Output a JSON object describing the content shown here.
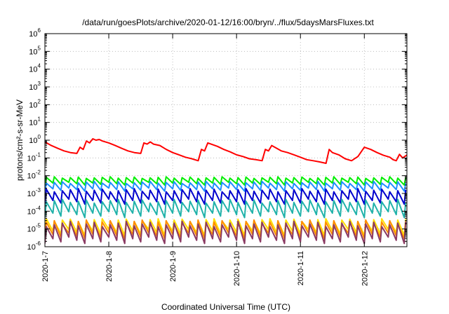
{
  "chart_data": {
    "type": "line",
    "title": "/data/run/goesPlots/archive/2020-01-12/16:00/bryn/../flux/5daysMarsFluxes.txt",
    "xlabel": "Coordinated Universal Time (UTC)",
    "ylabel": "protons/cm²-s-sr-MeV",
    "yscale": "log",
    "ylim": [
      1e-06,
      1000000.0
    ],
    "xlim": [
      "2020-01-07T00:00",
      "2020-01-12T16:00"
    ],
    "grid": true,
    "legend": "none",
    "x_tick_labels": [
      "2020-1-7",
      "2020-1-8",
      "2020-1-9",
      "2020-1-10",
      "2020-1-11",
      "2020-1-12"
    ],
    "x_tick_days": [
      0,
      1,
      2,
      3,
      4,
      5
    ],
    "y_tick_exponents": [
      -6,
      -5,
      -4,
      -3,
      -2,
      -1,
      0,
      1,
      2,
      3,
      4,
      5,
      6
    ],
    "series": [
      {
        "color": "#ff0000",
        "x_days": [
          0.0,
          0.1,
          0.2,
          0.3,
          0.4,
          0.5,
          0.55,
          0.6,
          0.65,
          0.7,
          0.75,
          0.8,
          0.85,
          0.9,
          1.0,
          1.1,
          1.2,
          1.3,
          1.4,
          1.5,
          1.55,
          1.6,
          1.65,
          1.7,
          1.8,
          1.9,
          2.0,
          2.1,
          2.2,
          2.3,
          2.4,
          2.45,
          2.5,
          2.55,
          2.6,
          2.7,
          2.8,
          2.9,
          3.0,
          3.1,
          3.2,
          3.3,
          3.4,
          3.45,
          3.5,
          3.55,
          3.6,
          3.7,
          3.8,
          3.9,
          4.0,
          4.1,
          4.2,
          4.3,
          4.4,
          4.45,
          4.5,
          4.6,
          4.7,
          4.8,
          4.9,
          5.0,
          5.1,
          5.2,
          5.3,
          5.4,
          5.45,
          5.5,
          5.55,
          5.6,
          5.67
        ],
        "y": [
          0.8,
          0.5,
          0.35,
          0.25,
          0.2,
          0.18,
          0.4,
          0.3,
          0.9,
          0.7,
          1.2,
          1.0,
          1.1,
          0.9,
          0.7,
          0.5,
          0.35,
          0.25,
          0.2,
          0.18,
          0.7,
          0.6,
          0.8,
          0.6,
          0.5,
          0.3,
          0.2,
          0.15,
          0.11,
          0.09,
          0.07,
          0.3,
          0.25,
          0.7,
          0.6,
          0.45,
          0.3,
          0.22,
          0.15,
          0.12,
          0.09,
          0.08,
          0.07,
          0.3,
          0.25,
          0.5,
          0.4,
          0.25,
          0.2,
          0.15,
          0.11,
          0.08,
          0.07,
          0.06,
          0.05,
          0.3,
          0.2,
          0.15,
          0.09,
          0.07,
          0.12,
          0.4,
          0.3,
          0.2,
          0.14,
          0.11,
          0.08,
          0.07,
          0.16,
          0.1,
          0.15
        ]
      },
      {
        "color": "#00ee00",
        "baseline": 0.006,
        "low": 0.0025,
        "high": 0.009,
        "period_days": 0.125
      },
      {
        "color": "#1e90ff",
        "baseline": 0.003,
        "low": 0.0011,
        "high": 0.005,
        "period_days": 0.125
      },
      {
        "color": "#0000cd",
        "baseline": 0.0009,
        "low": 0.00018,
        "high": 0.002,
        "period_days": 0.125
      },
      {
        "color": "#20b2aa",
        "baseline": 0.0002,
        "low": 3e-05,
        "high": 0.0005,
        "period_days": 0.125
      },
      {
        "color": "#ffdd00",
        "baseline": 2e-05,
        "low": 3e-06,
        "high": 4e-05,
        "period_days": 0.125
      },
      {
        "color": "#ff8c00",
        "baseline": 1.2e-05,
        "low": 2e-06,
        "high": 3.5e-05,
        "period_days": 0.125
      },
      {
        "color": "#8b3a62",
        "baseline": 8e-06,
        "low": 1e-06,
        "high": 3e-05,
        "period_days": 0.125
      }
    ]
  }
}
